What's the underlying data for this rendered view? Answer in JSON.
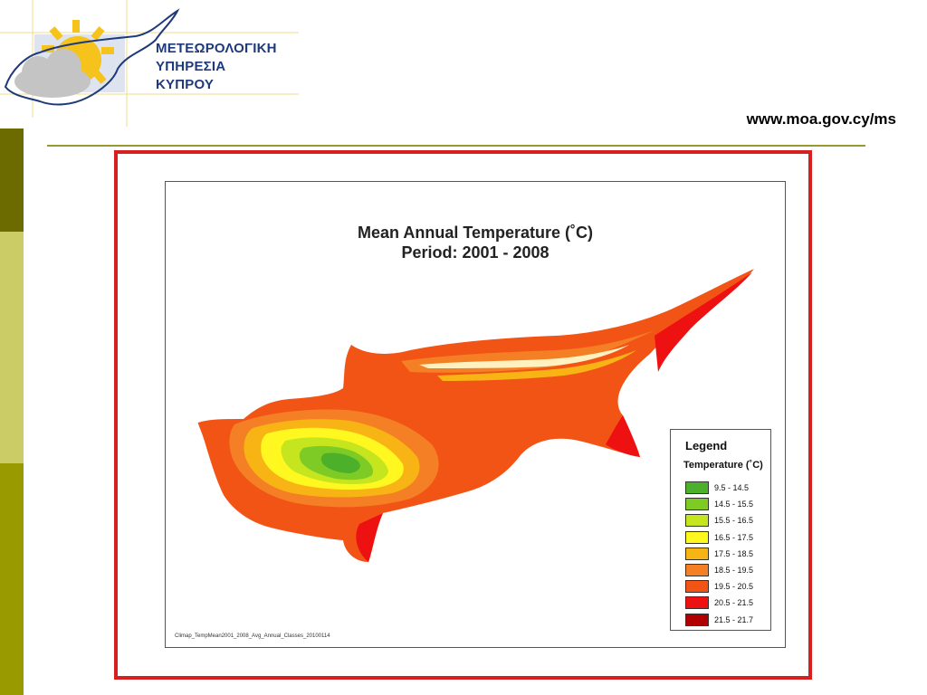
{
  "header": {
    "logo": {
      "org_line1": "ΜΕΤΕΩΡΟΛΟΓΙΚΗ",
      "org_line2": "ΥΠΗΡΕΣΙΑ",
      "org_line3": "ΚΥΠΡΟΥ"
    },
    "url": "www.moa.gov.cy/ms"
  },
  "map": {
    "title_line1": "Mean Annual Temperature (˚C)",
    "title_line2": "Period:   2001 - 2008",
    "footnote": "Climap_TempMean2001_2008_Avg_Annual_Classes_20100114",
    "legend": {
      "title": "Legend",
      "subtitle": "Temperature (˚C)",
      "classes": [
        {
          "label": "9.5 - 14.5",
          "color": "#4cb02a"
        },
        {
          "label": "14.5 - 15.5",
          "color": "#7dcb24"
        },
        {
          "label": "15.5 - 16.5",
          "color": "#c5e51e"
        },
        {
          "label": "16.5 - 17.5",
          "color": "#fff720"
        },
        {
          "label": "17.5 - 18.5",
          "color": "#f8b414"
        },
        {
          "label": "18.5 - 19.5",
          "color": "#f47f24"
        },
        {
          "label": "19.5 - 20.5",
          "color": "#f25416"
        },
        {
          "label": "20.5 - 21.5",
          "color": "#ee1111"
        },
        {
          "label": "21.5 - 21.7",
          "color": "#b00000"
        }
      ]
    }
  },
  "colors": {
    "frame": "#d81f1f",
    "rule": "#999933",
    "logo_text": "#1f3a7a"
  }
}
